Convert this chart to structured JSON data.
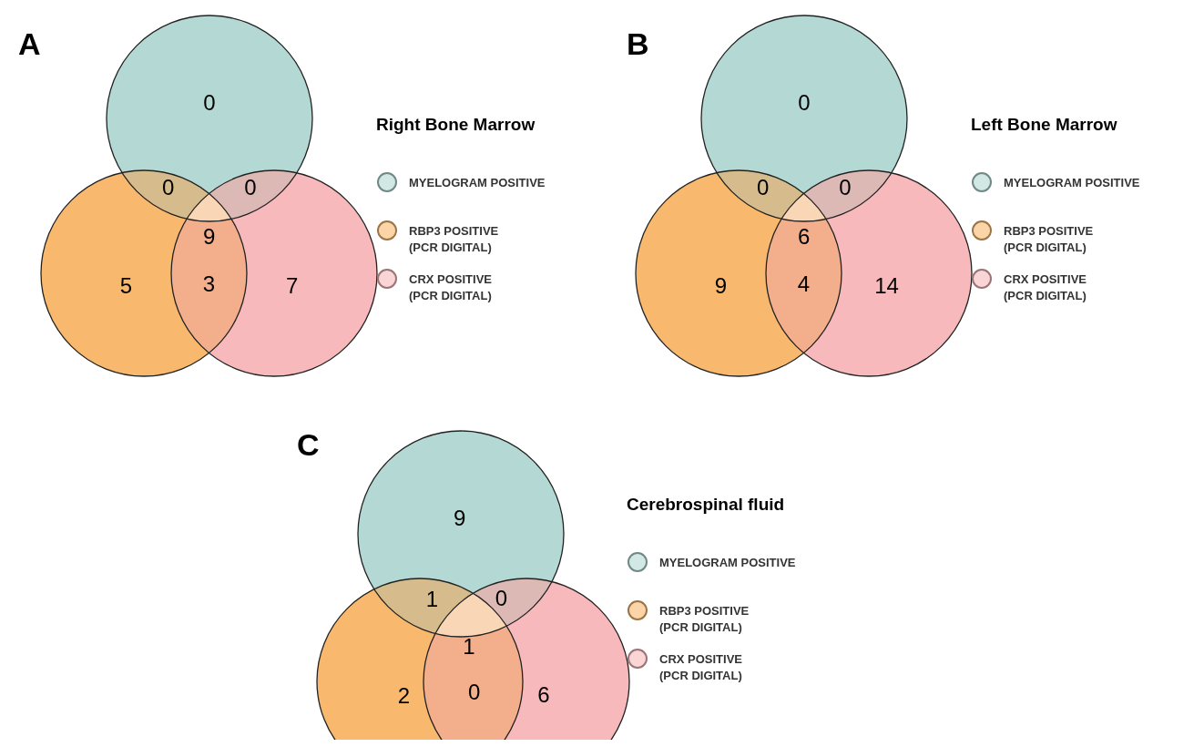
{
  "chart_data": [
    {
      "type": "other",
      "title": "Right Bone Marrow",
      "categories": [
        null,
        null,
        null,
        null,
        null,
        null,
        null
      ],
      "values": [
        0,
        0,
        0,
        9,
        5,
        3,
        7
      ],
      "data_labels": true,
      "colors": [
        "#b4d9d4",
        "#d6bc8c",
        "#ddb9b6",
        "#f9d6b5",
        "#f8b96e",
        "#f3ae8c",
        "#f7b9bb"
      ],
      "annotations": [
        "A",
        "MYELOGRAM POSITIVE",
        "RBP3 POSITIVE\n(PCR DIGITAL)",
        "CRX POSITIVE\n(PCR DIGITAL)"
      ]
    },
    {
      "type": "other",
      "title": "Left Bone Marrow",
      "categories": [
        null,
        null,
        null,
        null,
        null,
        null,
        null
      ],
      "values": [
        0,
        0,
        0,
        6,
        9,
        4,
        14
      ],
      "data_labels": true,
      "colors": [
        "#b4d9d4",
        "#d6bc8c",
        "#ddb9b6",
        "#f9d6b5",
        "#f8b96e",
        "#f3ae8c",
        "#f7b9bb"
      ],
      "annotations": [
        "B",
        "MYELOGRAM POSITIVE",
        "RBP3 POSITIVE\n(PCR DIGITAL)",
        "CRX POSITIVE\n(PCR DIGITAL)"
      ]
    },
    {
      "type": "other",
      "title": "Cerebrospinal fluid",
      "categories": [
        null,
        null,
        null,
        null,
        null,
        null,
        null
      ],
      "values": [
        9,
        1,
        0,
        1,
        2,
        0,
        6
      ],
      "data_labels": true,
      "colors": [
        "#b4d9d4",
        "#d6bc8c",
        "#ddb9b6",
        "#f9d6b5",
        "#f8b96e",
        "#f3ae8c",
        "#f7b9bb"
      ],
      "annotations": [
        "C",
        "MYELOGRAM POSITIVE",
        "RBP3 POSITIVE\n(PCR DIGITAL)",
        "CRX POSITIVE\n(PCR DIGITAL)"
      ]
    }
  ]
}
